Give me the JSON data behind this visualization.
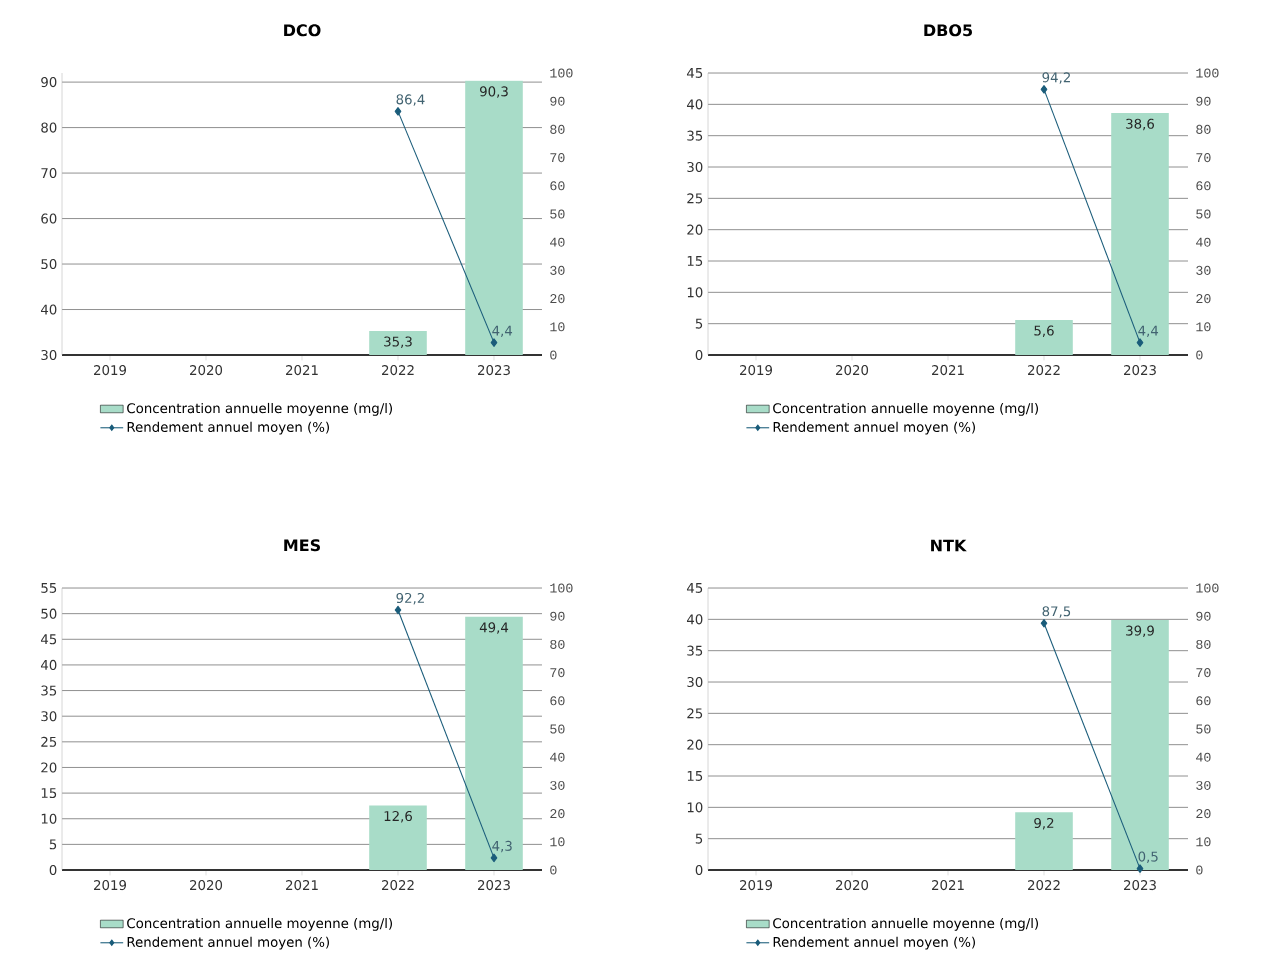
{
  "chart_data": [
    {
      "type": "bar",
      "title": "DCO",
      "categories": [
        "2019",
        "2020",
        "2021",
        "2022",
        "2023"
      ],
      "series": [
        {
          "name": "Concentration annuelle moyenne (mg/l)",
          "color": "#a8dcc8",
          "values": [
            null,
            null,
            null,
            35.3,
            90.3
          ],
          "value_labels": [
            null,
            null,
            null,
            "35,3",
            "90,3"
          ]
        },
        {
          "name": "Rendement annuel moyen (%)",
          "type": "line",
          "axis": "y2",
          "color": "#1a5c7a",
          "marker": "diamond",
          "line_style": "solid",
          "values": [
            null,
            null,
            null,
            86.4,
            4.4
          ],
          "value_labels": [
            null,
            null,
            null,
            "86,4",
            "4,4"
          ]
        }
      ],
      "ylim": [
        30,
        92
      ],
      "yticks": [
        30,
        40,
        50,
        60,
        70,
        80,
        90
      ],
      "y2lim": [
        0,
        100
      ],
      "y2ticks": [
        0,
        10,
        20,
        30,
        40,
        50,
        60,
        70,
        80,
        90,
        100
      ],
      "grid": "y",
      "legend": "bottom"
    },
    {
      "type": "bar",
      "title": "DBO5",
      "categories": [
        "2019",
        "2020",
        "2021",
        "2022",
        "2023"
      ],
      "series": [
        {
          "name": "Concentration annuelle moyenne (mg/l)",
          "color": "#a8dcc8",
          "values": [
            null,
            null,
            null,
            5.6,
            38.6
          ],
          "value_labels": [
            null,
            null,
            null,
            "5,6",
            "38,6"
          ]
        },
        {
          "name": "Rendement annuel moyen (%)",
          "type": "line",
          "axis": "y2",
          "color": "#1a5c7a",
          "marker": "diamond",
          "line_style": "solid",
          "values": [
            null,
            null,
            null,
            94.2,
            4.4
          ],
          "value_labels": [
            null,
            null,
            null,
            "94,2",
            "4,4"
          ]
        }
      ],
      "ylim": [
        0,
        45
      ],
      "yticks": [
        0,
        5,
        10,
        15,
        20,
        25,
        30,
        35,
        40,
        45
      ],
      "y2lim": [
        0,
        100
      ],
      "y2ticks": [
        0,
        10,
        20,
        30,
        40,
        50,
        60,
        70,
        80,
        90,
        100
      ],
      "grid": "y",
      "legend": "bottom"
    },
    {
      "type": "bar",
      "title": "MES",
      "categories": [
        "2019",
        "2020",
        "2021",
        "2022",
        "2023"
      ],
      "series": [
        {
          "name": "Concentration annuelle moyenne (mg/l)",
          "color": "#a8dcc8",
          "values": [
            null,
            null,
            null,
            12.6,
            49.4
          ],
          "value_labels": [
            null,
            null,
            null,
            "12,6",
            "49,4"
          ]
        },
        {
          "name": "Rendement annuel moyen (%)",
          "type": "line",
          "axis": "y2",
          "color": "#1a5c7a",
          "marker": "diamond",
          "line_style": "solid",
          "values": [
            null,
            null,
            null,
            92.2,
            4.3
          ],
          "value_labels": [
            null,
            null,
            null,
            "92,2",
            "4,3"
          ]
        }
      ],
      "ylim": [
        0,
        55
      ],
      "yticks": [
        0,
        5,
        10,
        15,
        20,
        25,
        30,
        35,
        40,
        45,
        50,
        55
      ],
      "y2lim": [
        0,
        100
      ],
      "y2ticks": [
        0,
        10,
        20,
        30,
        40,
        50,
        60,
        70,
        80,
        90,
        100
      ],
      "grid": "y",
      "legend": "bottom"
    },
    {
      "type": "bar",
      "title": "NTK",
      "categories": [
        "2019",
        "2020",
        "2021",
        "2022",
        "2023"
      ],
      "series": [
        {
          "name": "Concentration annuelle moyenne (mg/l)",
          "color": "#a8dcc8",
          "values": [
            null,
            null,
            null,
            9.2,
            39.9
          ],
          "value_labels": [
            null,
            null,
            null,
            "9,2",
            "39,9"
          ]
        },
        {
          "name": "Rendement annuel moyen (%)",
          "type": "line",
          "axis": "y2",
          "color": "#1a5c7a",
          "marker": "diamond",
          "line_style": "solid",
          "values": [
            null,
            null,
            null,
            87.5,
            0.5
          ],
          "value_labels": [
            null,
            null,
            null,
            "87,5",
            "0,5"
          ]
        }
      ],
      "ylim": [
        0,
        45
      ],
      "yticks": [
        0,
        5,
        10,
        15,
        20,
        25,
        30,
        35,
        40,
        45
      ],
      "y2lim": [
        0,
        100
      ],
      "y2ticks": [
        0,
        10,
        20,
        30,
        40,
        50,
        60,
        70,
        80,
        90,
        100
      ],
      "grid": "y",
      "legend": "bottom"
    }
  ]
}
